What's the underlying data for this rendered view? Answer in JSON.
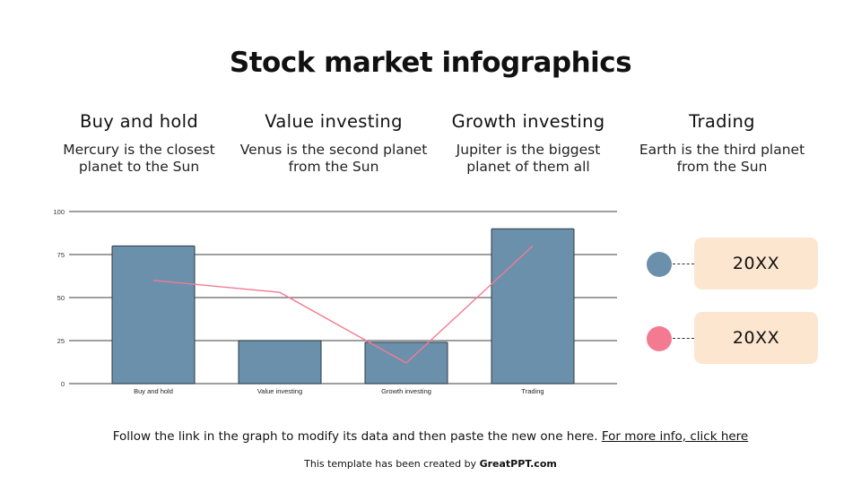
{
  "title": "Stock market infographics",
  "columns": [
    {
      "heading": "Buy and hold",
      "text": "Mercury is the closest planet to the Sun"
    },
    {
      "heading": "Value investing",
      "text": "Venus is the second planet from the Sun"
    },
    {
      "heading": "Growth investing",
      "text": "Jupiter is the biggest planet of them all"
    },
    {
      "heading": "Trading",
      "text": "Earth is the third planet from the Sun"
    }
  ],
  "legend": [
    {
      "label": "20XX",
      "color": "#6a90ac"
    },
    {
      "label": "20XX",
      "color": "#f47a91"
    }
  ],
  "footer": {
    "note": "Follow the link in the graph to modify its data and then paste the new one here.",
    "link": "For more info, click here",
    "credit_prefix": "This template has been created by",
    "credit_brand": "GreatPPT.com"
  },
  "chart_data": {
    "type": "bar",
    "title": "",
    "xlabel": "",
    "ylabel": "",
    "categories": [
      "Buy and hold",
      "Value investing",
      "Growth investing",
      "Trading"
    ],
    "series": [
      {
        "name": "20XX",
        "type": "bar",
        "color": "#6a90ac",
        "values": [
          80,
          25,
          24,
          90
        ]
      },
      {
        "name": "20XX",
        "type": "line",
        "color": "#f47a91",
        "values": [
          60,
          53,
          12,
          80
        ]
      }
    ],
    "yticks": [
      0,
      25,
      50,
      75,
      100
    ],
    "ylim": [
      0,
      100
    ],
    "grid": true,
    "legend_position": "right"
  }
}
